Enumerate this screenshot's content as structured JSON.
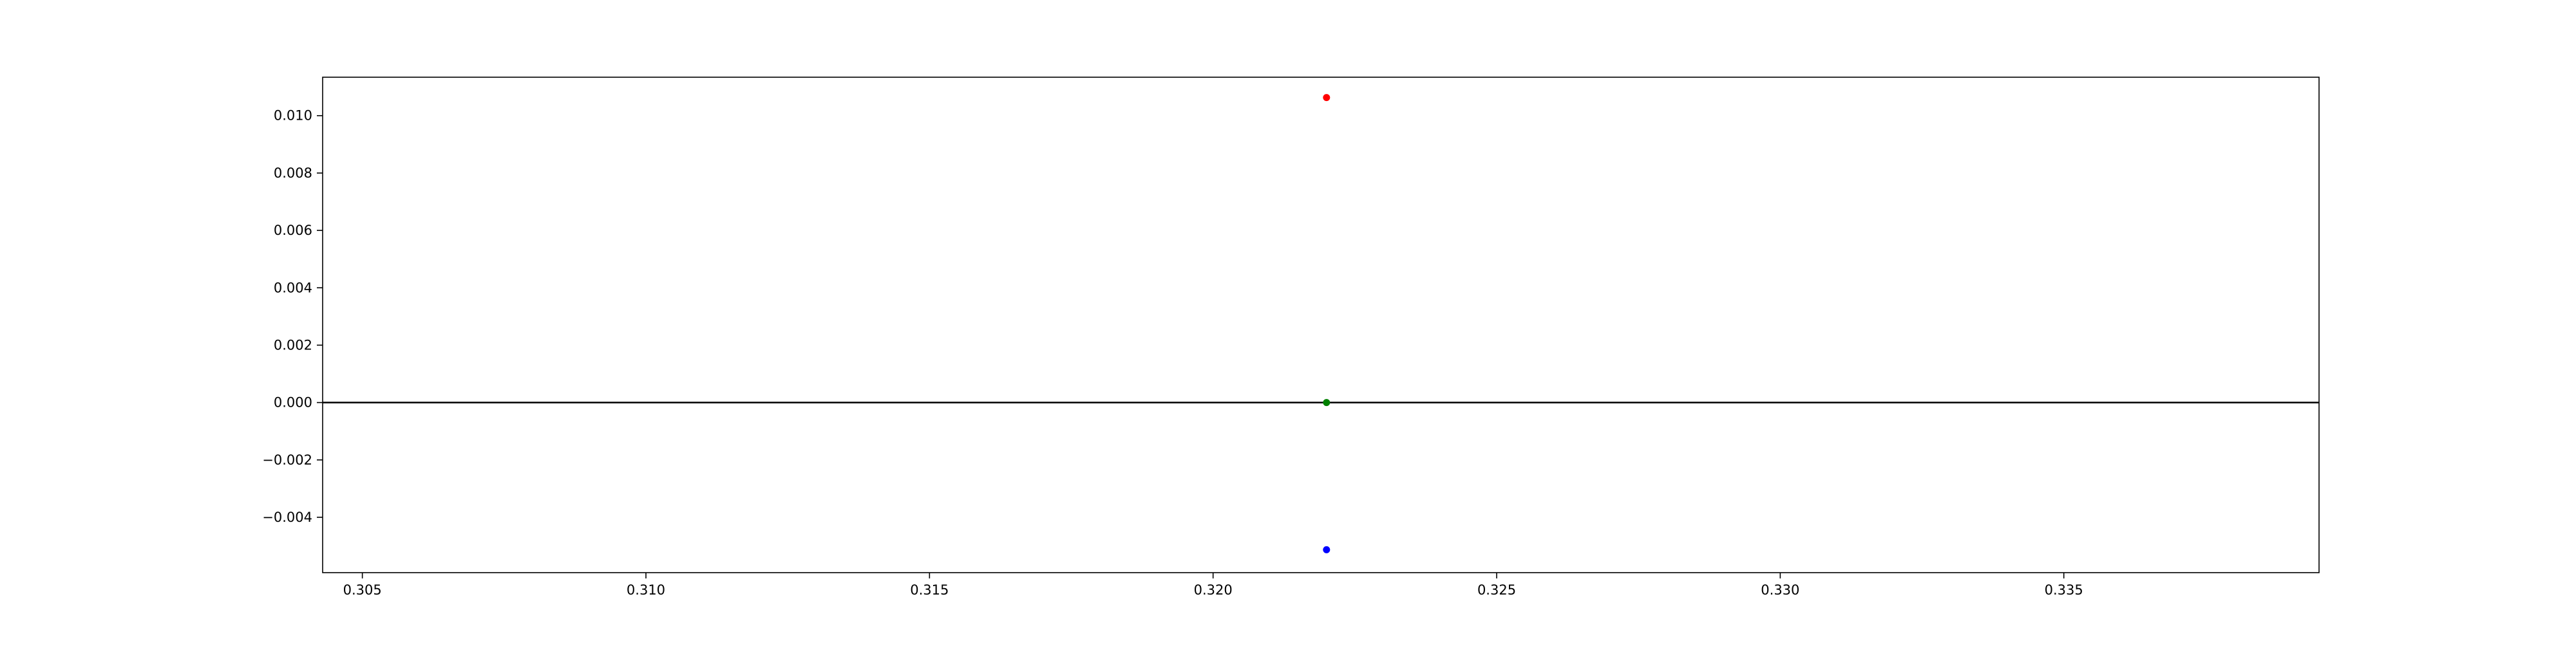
{
  "chart_data": {
    "type": "scatter",
    "title": "",
    "xlabel": "",
    "ylabel": "",
    "xlim": [
      0.3043,
      0.3395
    ],
    "ylim": [
      -0.00593,
      0.01134
    ],
    "grid": false,
    "x_ticks": [
      {
        "value": 0.305,
        "label": "0.305"
      },
      {
        "value": 0.31,
        "label": "0.310"
      },
      {
        "value": 0.315,
        "label": "0.315"
      },
      {
        "value": 0.32,
        "label": "0.320"
      },
      {
        "value": 0.325,
        "label": "0.325"
      },
      {
        "value": 0.33,
        "label": "0.330"
      },
      {
        "value": 0.335,
        "label": "0.335"
      }
    ],
    "y_ticks": [
      {
        "value": 0.01,
        "label": "0.010"
      },
      {
        "value": 0.008,
        "label": "0.008"
      },
      {
        "value": 0.006,
        "label": "0.006"
      },
      {
        "value": 0.004,
        "label": "0.004"
      },
      {
        "value": 0.002,
        "label": "0.002"
      },
      {
        "value": 0.0,
        "label": "0.000"
      },
      {
        "value": -0.002,
        "label": "−0.002"
      },
      {
        "value": -0.004,
        "label": "−0.004"
      }
    ],
    "reference_lines": [
      {
        "orientation": "horizontal",
        "y": 0.0,
        "color": "#000000"
      }
    ],
    "points": [
      {
        "x": 0.322,
        "y": 0.01063,
        "color": "#ff0000"
      },
      {
        "x": 0.322,
        "y": 0.0,
        "color": "#008000"
      },
      {
        "x": 0.322,
        "y": -0.00513,
        "color": "#0000ff"
      }
    ]
  }
}
